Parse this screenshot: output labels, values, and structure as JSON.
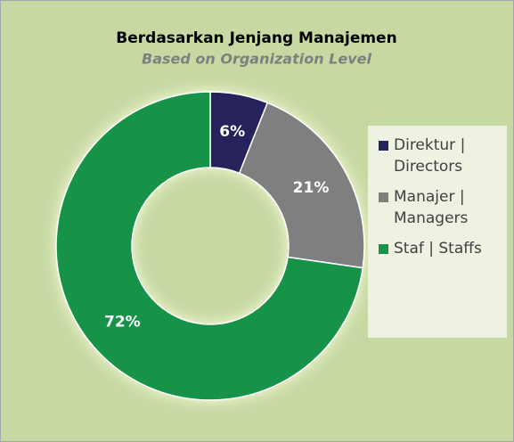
{
  "chart_data": {
    "type": "donut",
    "title": "Berdasarkan Jenjang Manajemen",
    "subtitle": "Based on Organization Level",
    "categories": [
      "Direktur | Directors",
      "Manajer | Managers",
      "Staf | Staffs"
    ],
    "values": [
      6,
      21,
      72
    ],
    "value_labels": [
      "6%",
      "21%",
      "72%"
    ],
    "colors": [
      "#25235c",
      "#7f7f7f",
      "#159348"
    ],
    "legend": "right"
  }
}
